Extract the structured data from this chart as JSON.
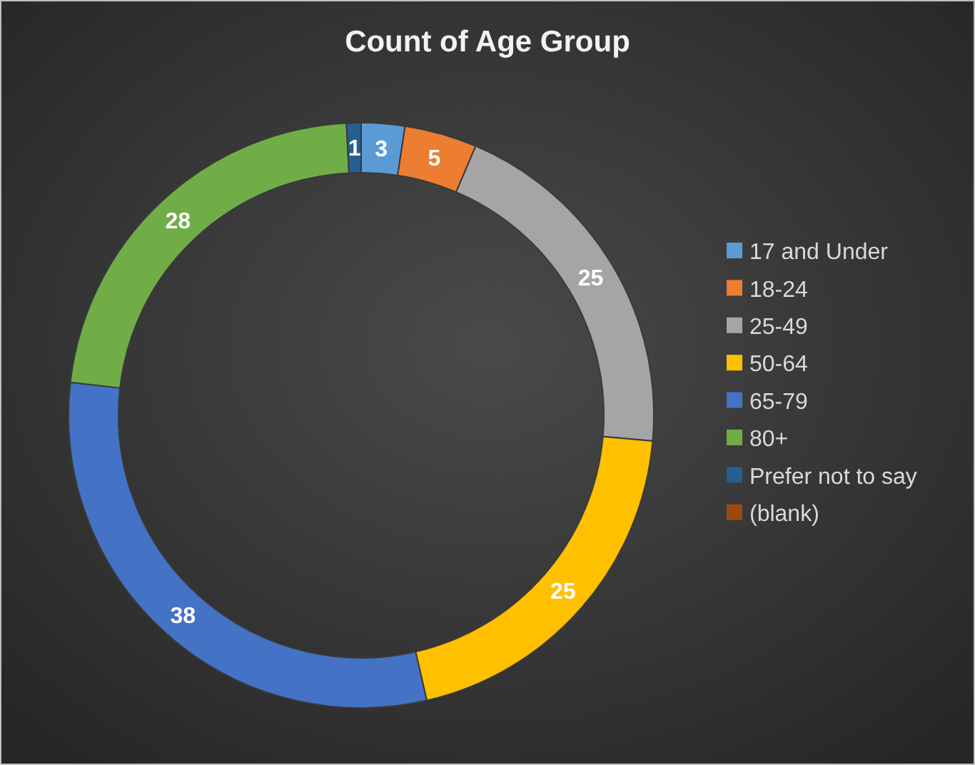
{
  "chart_data": {
    "type": "donut",
    "title": "Count of Age Group",
    "categories": [
      "17 and Under",
      "18-24",
      "25-49",
      "50-64",
      "65-79",
      "80+",
      "Prefer not to say",
      "(blank)"
    ],
    "values": [
      3,
      5,
      25,
      25,
      38,
      28,
      1,
      0
    ],
    "value_labels": [
      "3",
      "5",
      "25",
      "25",
      "38",
      "28",
      "1",
      null
    ],
    "colors": [
      "#5b9bd5",
      "#ed7d31",
      "#a5a5a5",
      "#ffc000",
      "#4472c4",
      "#70ad47",
      "#255e91",
      "#9e480e"
    ],
    "legend": "right"
  }
}
